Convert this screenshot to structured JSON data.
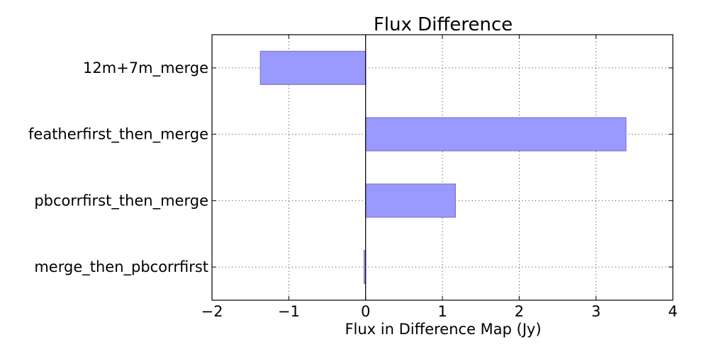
{
  "chart_data": {
    "type": "bar",
    "orientation": "horizontal",
    "title": "Flux Difference",
    "xlabel": "Flux in Difference Map (Jy)",
    "ylabel": "",
    "categories": [
      "12m+7m_merge",
      "featherfirst_then_merge",
      "pbcorrfirst_then_merge",
      "merge_then_pbcorrfirst"
    ],
    "values": [
      -1.37,
      3.39,
      1.17,
      -0.02
    ],
    "xlim": [
      -2,
      4
    ],
    "xticks": [
      -2,
      -1,
      0,
      1,
      2,
      3,
      4
    ],
    "xtick_labels": [
      "−2",
      "−1",
      "0",
      "1",
      "2",
      "3",
      "4"
    ],
    "grid": true,
    "colors": {
      "bar_fill": "#9999ff",
      "bar_stroke": "#7a7acc",
      "axis": "#000000"
    }
  }
}
